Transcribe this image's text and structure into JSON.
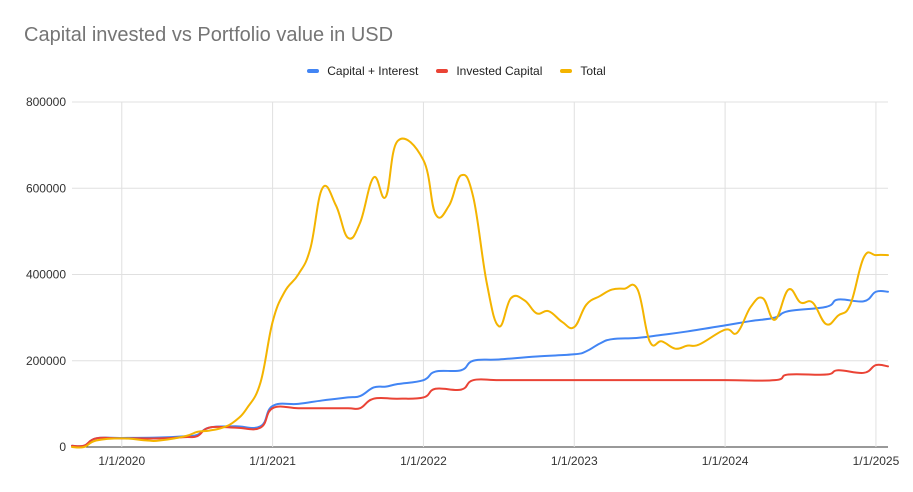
{
  "chart_data": {
    "type": "line",
    "title": "Capital invested vs Portfolio value in USD",
    "xlabel": "",
    "ylabel": "",
    "x_ticks": [
      "1/1/2020",
      "1/1/2021",
      "1/1/2022",
      "1/1/2023",
      "1/1/2024",
      "1/1/2025"
    ],
    "x_tick_years": [
      2020,
      2021,
      2022,
      2023,
      2024,
      2025
    ],
    "xlim": [
      2019.67,
      2025.08
    ],
    "y_ticks": [
      "0",
      "200000",
      "400000",
      "600000",
      "800000"
    ],
    "y_tick_values": [
      0,
      200000,
      400000,
      600000,
      800000
    ],
    "ylim": [
      0,
      800000
    ],
    "grid": true,
    "legend_position": "top",
    "series": [
      {
        "name": "Capital + Interest",
        "color": "#4285F4",
        "points": [
          [
            2019.67,
            3000
          ],
          [
            2019.75,
            3000
          ],
          [
            2019.83,
            20000
          ],
          [
            2020.0,
            21000
          ],
          [
            2020.25,
            22000
          ],
          [
            2020.42,
            25000
          ],
          [
            2020.5,
            28000
          ],
          [
            2020.58,
            45000
          ],
          [
            2020.75,
            48000
          ],
          [
            2020.92,
            48000
          ],
          [
            2021.0,
            95000
          ],
          [
            2021.17,
            100000
          ],
          [
            2021.33,
            108000
          ],
          [
            2021.5,
            115000
          ],
          [
            2021.58,
            118000
          ],
          [
            2021.67,
            138000
          ],
          [
            2021.75,
            140000
          ],
          [
            2021.83,
            146000
          ],
          [
            2022.0,
            155000
          ],
          [
            2022.08,
            175000
          ],
          [
            2022.25,
            178000
          ],
          [
            2022.33,
            200000
          ],
          [
            2022.5,
            203000
          ],
          [
            2022.75,
            210000
          ],
          [
            2023.0,
            215000
          ],
          [
            2023.08,
            222000
          ],
          [
            2023.17,
            240000
          ],
          [
            2023.25,
            250000
          ],
          [
            2023.42,
            253000
          ],
          [
            2023.58,
            260000
          ],
          [
            2023.75,
            268000
          ],
          [
            2024.0,
            282000
          ],
          [
            2024.17,
            292000
          ],
          [
            2024.33,
            300000
          ],
          [
            2024.42,
            315000
          ],
          [
            2024.67,
            325000
          ],
          [
            2024.75,
            342000
          ],
          [
            2024.92,
            338000
          ],
          [
            2025.0,
            360000
          ],
          [
            2025.08,
            360000
          ]
        ]
      },
      {
        "name": "Invested Capital",
        "color": "#EA4335",
        "points": [
          [
            2019.67,
            3000
          ],
          [
            2019.75,
            3000
          ],
          [
            2019.83,
            20000
          ],
          [
            2020.0,
            20000
          ],
          [
            2020.25,
            20000
          ],
          [
            2020.42,
            23000
          ],
          [
            2020.5,
            25000
          ],
          [
            2020.58,
            45000
          ],
          [
            2020.75,
            45000
          ],
          [
            2020.92,
            45000
          ],
          [
            2021.0,
            90000
          ],
          [
            2021.17,
            90000
          ],
          [
            2021.33,
            90000
          ],
          [
            2021.5,
            90000
          ],
          [
            2021.58,
            90000
          ],
          [
            2021.67,
            112000
          ],
          [
            2021.83,
            112000
          ],
          [
            2022.0,
            115000
          ],
          [
            2022.08,
            135000
          ],
          [
            2022.25,
            133000
          ],
          [
            2022.33,
            155000
          ],
          [
            2022.5,
            155000
          ],
          [
            2022.75,
            155000
          ],
          [
            2023.0,
            155000
          ],
          [
            2023.5,
            155000
          ],
          [
            2024.0,
            155000
          ],
          [
            2024.33,
            155000
          ],
          [
            2024.42,
            168000
          ],
          [
            2024.67,
            168000
          ],
          [
            2024.75,
            178000
          ],
          [
            2024.92,
            172000
          ],
          [
            2025.0,
            190000
          ],
          [
            2025.08,
            187000
          ]
        ]
      },
      {
        "name": "Total",
        "color": "#F4B400",
        "points": [
          [
            2019.67,
            0
          ],
          [
            2019.75,
            0
          ],
          [
            2019.83,
            15000
          ],
          [
            2020.0,
            20000
          ],
          [
            2020.17,
            15000
          ],
          [
            2020.25,
            15000
          ],
          [
            2020.42,
            25000
          ],
          [
            2020.5,
            35000
          ],
          [
            2020.58,
            38000
          ],
          [
            2020.67,
            45000
          ],
          [
            2020.75,
            60000
          ],
          [
            2020.83,
            90000
          ],
          [
            2020.92,
            150000
          ],
          [
            2021.0,
            290000
          ],
          [
            2021.08,
            360000
          ],
          [
            2021.17,
            400000
          ],
          [
            2021.25,
            460000
          ],
          [
            2021.33,
            600000
          ],
          [
            2021.42,
            560000
          ],
          [
            2021.5,
            485000
          ],
          [
            2021.58,
            520000
          ],
          [
            2021.67,
            625000
          ],
          [
            2021.75,
            580000
          ],
          [
            2021.83,
            710000
          ],
          [
            2022.0,
            665000
          ],
          [
            2022.08,
            540000
          ],
          [
            2022.17,
            560000
          ],
          [
            2022.25,
            630000
          ],
          [
            2022.33,
            580000
          ],
          [
            2022.42,
            380000
          ],
          [
            2022.5,
            280000
          ],
          [
            2022.58,
            345000
          ],
          [
            2022.67,
            340000
          ],
          [
            2022.75,
            310000
          ],
          [
            2022.83,
            315000
          ],
          [
            2022.92,
            290000
          ],
          [
            2023.0,
            278000
          ],
          [
            2023.08,
            330000
          ],
          [
            2023.17,
            350000
          ],
          [
            2023.25,
            365000
          ],
          [
            2023.33,
            367000
          ],
          [
            2023.42,
            365000
          ],
          [
            2023.5,
            245000
          ],
          [
            2023.58,
            245000
          ],
          [
            2023.67,
            228000
          ],
          [
            2023.75,
            235000
          ],
          [
            2023.83,
            238000
          ],
          [
            2024.0,
            272000
          ],
          [
            2024.08,
            265000
          ],
          [
            2024.17,
            325000
          ],
          [
            2024.25,
            345000
          ],
          [
            2024.33,
            295000
          ],
          [
            2024.42,
            365000
          ],
          [
            2024.5,
            335000
          ],
          [
            2024.58,
            335000
          ],
          [
            2024.67,
            285000
          ],
          [
            2024.75,
            305000
          ],
          [
            2024.83,
            330000
          ],
          [
            2024.92,
            440000
          ],
          [
            2025.0,
            445000
          ],
          [
            2025.08,
            445000
          ]
        ]
      }
    ]
  }
}
